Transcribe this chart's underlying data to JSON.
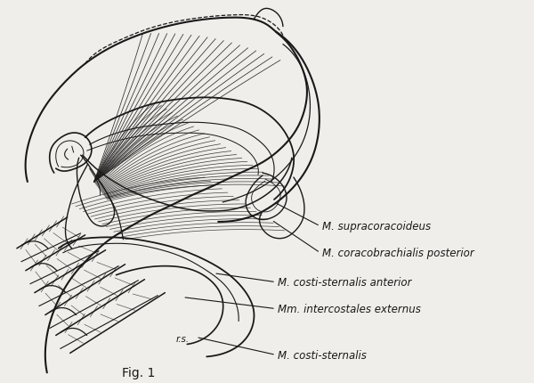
{
  "background_color": "#f0eeea",
  "line_color": "#1a1818",
  "title": "Fig. 1",
  "labels": {
    "supracoracoideus": "M. supracoracoideus",
    "coracobrachialis": "M. coracobrachialis posterior",
    "costi_anterior": "M. costi-sternalis anterior",
    "intercostales": "Mm. intercostales externus",
    "costi_sternalis": "M. costi-sternalis"
  },
  "fontsize": 8.5,
  "title_fontsize": 10,
  "rs_label": "r.s.",
  "fig_label": "Fig. 1"
}
